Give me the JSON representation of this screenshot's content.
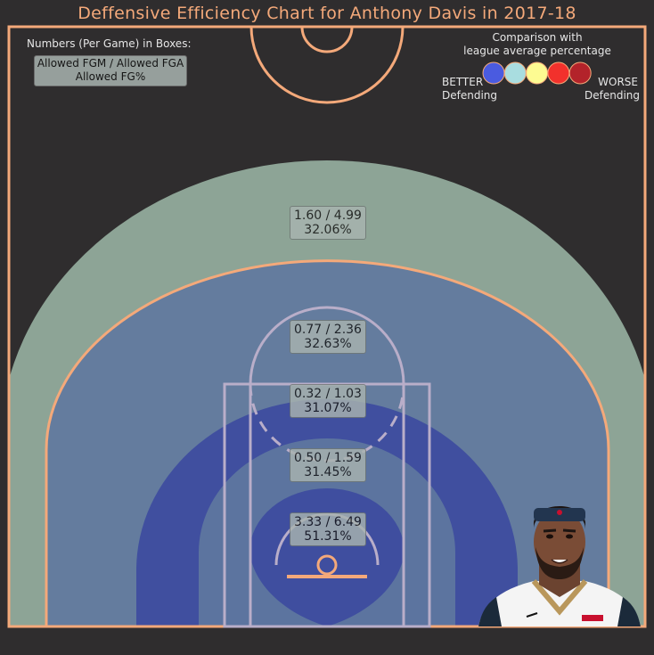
{
  "chart_data": {
    "type": "heatmap",
    "title": "Deffensive Efficiency Chart for Anthony Davis in 2017-18",
    "legend": {
      "numbers_label": "Numbers (Per Game) in Boxes:",
      "box_line1": "Allowed FGM / Allowed FGA",
      "box_line2": "Allowed FG%",
      "comparison_label_1": "Comparison with",
      "comparison_label_2": "league average percentage",
      "better_label_1": "BETTER",
      "better_label_2": "Defending",
      "worse_label_1": "WORSE",
      "worse_label_2": "Defending",
      "scale_colors": [
        "#4a5be0",
        "#a9dde0",
        "#fdfb92",
        "#f2312c",
        "#b3232a"
      ],
      "placement": "top-right"
    },
    "zones": [
      {
        "zone": "3PT",
        "fgm": 1.6,
        "fga": 4.99,
        "fg_pct": 32.06,
        "text": "1.60 / 4.99",
        "pct_text": "32.06%",
        "color": "#8da496"
      },
      {
        "zone": "Mid-Range (16-24 ft)",
        "fgm": 0.77,
        "fga": 2.36,
        "fg_pct": 32.63,
        "text": "0.77 / 2.36",
        "pct_text": "32.63%",
        "color": "#5f789f"
      },
      {
        "zone": "Mid-Range (8-16 ft)",
        "fgm": 0.32,
        "fga": 1.03,
        "fg_pct": 31.07,
        "text": "0.32 / 1.03",
        "pct_text": "31.07%",
        "color": "#3c4a9e"
      },
      {
        "zone": "Paint (5-8 ft)",
        "fgm": 0.5,
        "fga": 1.59,
        "fg_pct": 31.45,
        "text": "0.50 / 1.59",
        "pct_text": "31.45%",
        "color": "#5f789f"
      },
      {
        "zone": "Restricted Area",
        "fgm": 3.33,
        "fga": 6.49,
        "fg_pct": 51.31,
        "text": "3.33 / 6.49",
        "pct_text": "51.31%",
        "color": "#3c4a9e"
      }
    ]
  },
  "colors": {
    "background": "#2f2d2e",
    "court_lines": "#f4a97a",
    "paint_lines": "#b9aec9"
  },
  "player_photo": {
    "icon": "player-headshot"
  }
}
